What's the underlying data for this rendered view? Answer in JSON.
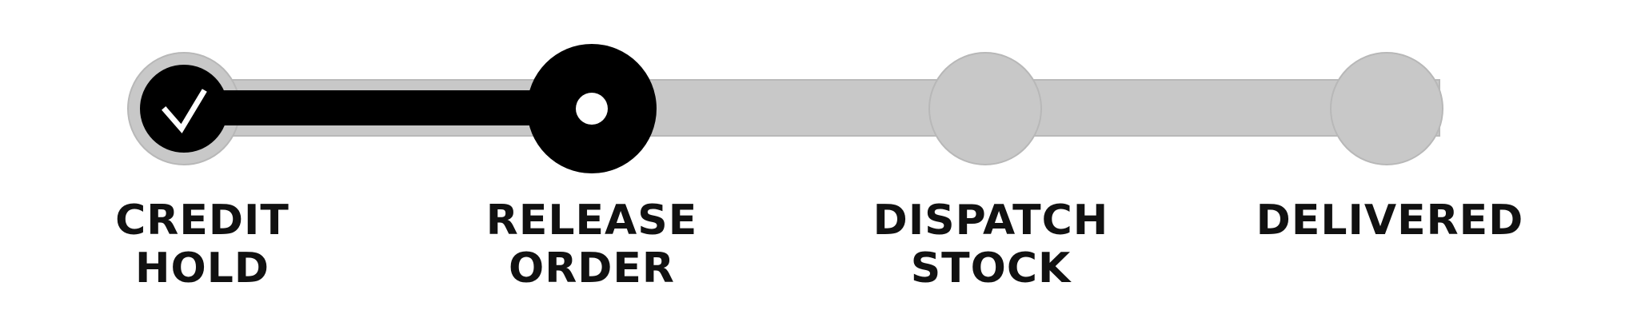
{
  "colors": {
    "track": "#c8c8c8",
    "track_outline": "#b4b4b4",
    "done": "#000000",
    "current": "#000000",
    "inner_dot": "#ffffff",
    "check": "#ffffff",
    "text": "#111111"
  },
  "current_step": 2,
  "progress_fraction": 0.333,
  "steps": [
    {
      "status": "completed",
      "icon": "check-icon",
      "label_line1": "CREDIT",
      "label_line2": "HOLD"
    },
    {
      "status": "current",
      "icon": "dot-icon",
      "label_line1": "RELEASE",
      "label_line2": "ORDER"
    },
    {
      "status": "pending",
      "icon": "",
      "label_line1": "DISPATCH",
      "label_line2": "STOCK"
    },
    {
      "status": "pending",
      "icon": "",
      "label_line1": "DELIVERED",
      "label_line2": ""
    }
  ]
}
